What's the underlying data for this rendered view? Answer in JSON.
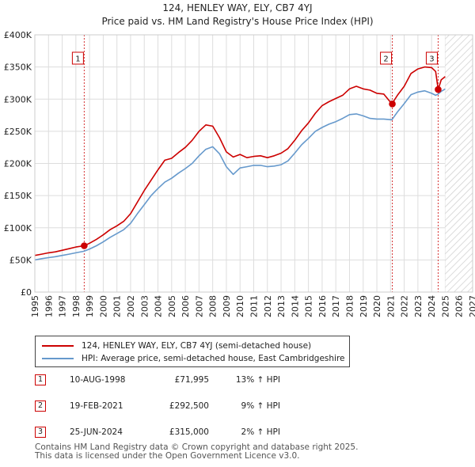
{
  "title_line1": "124, HENLEY WAY, ELY, CB7 4YJ",
  "title_line2": "Price paid vs. HM Land Registry's House Price Index (HPI)",
  "chart_data": {
    "type": "line",
    "title": "124, HENLEY WAY, ELY, CB7 4YJ — Price paid vs. HM Land Registry's House Price Index (HPI)",
    "xlim": [
      1995,
      2027
    ],
    "ylim": [
      0,
      400000
    ],
    "x_ticks": [
      "1995",
      "1996",
      "1997",
      "1998",
      "1999",
      "2000",
      "2001",
      "2002",
      "2003",
      "2004",
      "2005",
      "2006",
      "2007",
      "2008",
      "2009",
      "2010",
      "2011",
      "2012",
      "2013",
      "2014",
      "2015",
      "2016",
      "2017",
      "2018",
      "2019",
      "2020",
      "2021",
      "2022",
      "2023",
      "2024",
      "2025",
      "2026",
      "2027"
    ],
    "y_ticks": [
      {
        "value": 0,
        "label": "£0"
      },
      {
        "value": 50000,
        "label": "£50K"
      },
      {
        "value": 100000,
        "label": "£100K"
      },
      {
        "value": 150000,
        "label": "£150K"
      },
      {
        "value": 200000,
        "label": "£200K"
      },
      {
        "value": 250000,
        "label": "£250K"
      },
      {
        "value": 300000,
        "label": "£300K"
      },
      {
        "value": 350000,
        "label": "£350K"
      },
      {
        "value": 400000,
        "label": "£400K"
      }
    ],
    "series": [
      {
        "name": "124, HENLEY WAY, ELY, CB7 4YJ (semi-detached house)",
        "color": "#cc0000",
        "x": [
          1995.0,
          1995.5,
          1996.0,
          1996.5,
          1997.0,
          1997.5,
          1998.0,
          1998.6,
          1999.0,
          1999.5,
          2000.0,
          2000.5,
          2001.0,
          2001.5,
          2002.0,
          2002.5,
          2003.0,
          2003.5,
          2004.0,
          2004.5,
          2005.0,
          2005.5,
          2006.0,
          2006.5,
          2007.0,
          2007.5,
          2008.0,
          2008.5,
          2009.0,
          2009.5,
          2010.0,
          2010.5,
          2011.0,
          2011.5,
          2012.0,
          2012.5,
          2013.0,
          2013.5,
          2014.0,
          2014.5,
          2015.0,
          2015.5,
          2016.0,
          2016.5,
          2017.0,
          2017.5,
          2018.0,
          2018.5,
          2019.0,
          2019.5,
          2020.0,
          2020.5,
          2021.1,
          2021.5,
          2022.0,
          2022.5,
          2023.0,
          2023.5,
          2024.0,
          2024.3,
          2024.48,
          2024.7,
          2025.0
        ],
        "y": [
          57000,
          59000,
          61000,
          62500,
          65000,
          67500,
          70000,
          71995,
          76000,
          82000,
          89000,
          97000,
          103000,
          110000,
          122000,
          140000,
          158000,
          174000,
          190000,
          205000,
          208000,
          217000,
          225000,
          236000,
          250000,
          260000,
          258000,
          240000,
          218000,
          210000,
          214000,
          209000,
          211000,
          212000,
          209000,
          212000,
          216000,
          223000,
          236000,
          251000,
          263000,
          278000,
          290000,
          296000,
          301000,
          306000,
          316000,
          320000,
          316000,
          314000,
          309000,
          308000,
          292500,
          306000,
          320000,
          340000,
          347000,
          350000,
          349000,
          343000,
          315000,
          330000,
          335000
        ]
      },
      {
        "name": "HPI: Average price, semi-detached house, East Cambridgeshire",
        "color": "#6699cc",
        "x": [
          1995.0,
          1995.5,
          1996.0,
          1996.5,
          1997.0,
          1997.5,
          1998.0,
          1998.6,
          1999.0,
          1999.5,
          2000.0,
          2000.5,
          2001.0,
          2001.5,
          2002.0,
          2002.5,
          2003.0,
          2003.5,
          2004.0,
          2004.5,
          2005.0,
          2005.5,
          2006.0,
          2006.5,
          2007.0,
          2007.5,
          2008.0,
          2008.5,
          2009.0,
          2009.5,
          2010.0,
          2010.5,
          2011.0,
          2011.5,
          2012.0,
          2012.5,
          2013.0,
          2013.5,
          2014.0,
          2014.5,
          2015.0,
          2015.5,
          2016.0,
          2016.5,
          2017.0,
          2017.5,
          2018.0,
          2018.5,
          2019.0,
          2019.5,
          2020.0,
          2020.5,
          2021.1,
          2021.5,
          2022.0,
          2022.5,
          2023.0,
          2023.5,
          2024.0,
          2024.3,
          2024.48,
          2024.7,
          2025.0
        ],
        "y": [
          50000,
          52000,
          53500,
          55000,
          57000,
          59000,
          61000,
          63500,
          67000,
          72000,
          78000,
          85000,
          91000,
          97000,
          107000,
          122000,
          136000,
          150000,
          161000,
          171000,
          177000,
          185000,
          192000,
          200000,
          212000,
          222000,
          226000,
          215000,
          195000,
          183000,
          193000,
          195000,
          197000,
          197000,
          195000,
          196000,
          198000,
          204000,
          216000,
          229000,
          239000,
          250000,
          256000,
          261000,
          265000,
          270000,
          276000,
          277000,
          274000,
          270000,
          269000,
          269000,
          268000,
          280000,
          293000,
          307000,
          311000,
          313000,
          309000,
          306000,
          308000,
          312000,
          316000
        ]
      }
    ],
    "sales": [
      {
        "label": "1",
        "x": 1998.61,
        "y": 71995
      },
      {
        "label": "2",
        "x": 2021.13,
        "y": 292500
      },
      {
        "label": "3",
        "x": 2024.48,
        "y": 315000
      }
    ],
    "forecast_from": 2025.0
  },
  "legend": [
    {
      "label": "124, HENLEY WAY, ELY, CB7 4YJ (semi-detached house)",
      "color": "#cc0000"
    },
    {
      "label": "HPI: Average price, semi-detached house, East Cambridgeshire",
      "color": "#6699cc"
    }
  ],
  "sales_table": [
    {
      "num": "1",
      "date": "10-AUG-1998",
      "price": "£71,995",
      "hpi": "13% ↑ HPI"
    },
    {
      "num": "2",
      "date": "19-FEB-2021",
      "price": "£292,500",
      "hpi": "9% ↑ HPI"
    },
    {
      "num": "3",
      "date": "25-JUN-2024",
      "price": "£315,000",
      "hpi": "2% ↑ HPI"
    }
  ],
  "footer_line1": "Contains HM Land Registry data © Crown copyright and database right 2025.",
  "footer_line2": "This data is licensed under the Open Government Licence v3.0."
}
